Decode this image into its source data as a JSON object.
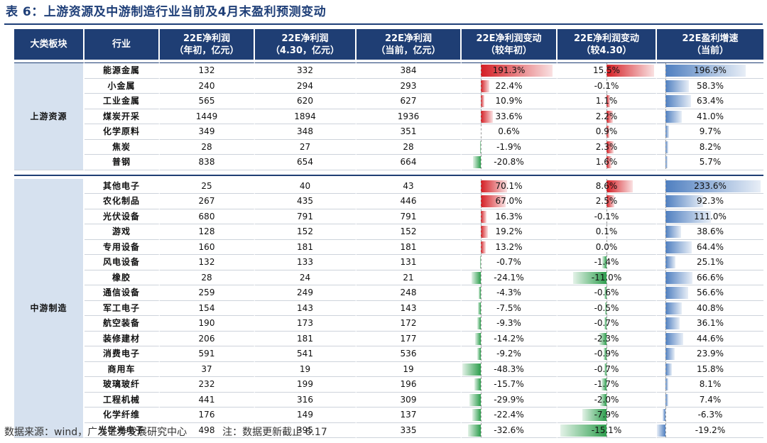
{
  "title": "表 6：上游资源及中游制造行业当前及4月末盈利预测变动",
  "headers": {
    "sector": "大类板块",
    "industry": "行业",
    "c1": [
      "22E净利润",
      "（年初，亿元）"
    ],
    "c2": [
      "22E净利润",
      "（4.30，亿元）"
    ],
    "c3": [
      "22E净利润",
      "（当前，亿元）"
    ],
    "c4": [
      "22E净利润变动",
      "（较年初）"
    ],
    "c5": [
      "22E净利润变动",
      "（较4.30）"
    ],
    "c6": [
      "22E盈利增速",
      "（当前）"
    ]
  },
  "colors": {
    "header_bg": "#1f3e74",
    "sector_bg": "#d6e1ef",
    "pos_bar": "#d41e24",
    "neg_bar": "#2e9e4e",
    "growth_bar": "#4f7fc0"
  },
  "groups": [
    {
      "sector": "上游资源",
      "rows": [
        {
          "name": "能源金属",
          "c1": "132",
          "c2": "332",
          "c3": "384",
          "c4": "191.3%",
          "c5": "15.5%",
          "c6": "196.9%",
          "v4": 191.3,
          "v5": 15.5,
          "v6": 196.9
        },
        {
          "name": "小金属",
          "c1": "240",
          "c2": "294",
          "c3": "293",
          "c4": "22.4%",
          "c5": "-0.1%",
          "c6": "58.3%",
          "v4": 22.4,
          "v5": -0.1,
          "v6": 58.3
        },
        {
          "name": "工业金属",
          "c1": "565",
          "c2": "620",
          "c3": "627",
          "c4": "10.9%",
          "c5": "1.1%",
          "c6": "63.4%",
          "v4": 10.9,
          "v5": 1.1,
          "v6": 63.4
        },
        {
          "name": "煤炭开采",
          "c1": "1449",
          "c2": "1894",
          "c3": "1936",
          "c4": "33.6%",
          "c5": "2.2%",
          "c6": "41.0%",
          "v4": 33.6,
          "v5": 2.2,
          "v6": 41.0
        },
        {
          "name": "化学原料",
          "c1": "349",
          "c2": "348",
          "c3": "351",
          "c4": "0.6%",
          "c5": "0.9%",
          "c6": "9.7%",
          "v4": 0.6,
          "v5": 0.9,
          "v6": 9.7
        },
        {
          "name": "焦炭",
          "c1": "28",
          "c2": "27",
          "c3": "28",
          "c4": "-1.9%",
          "c5": "2.3%",
          "c6": "8.2%",
          "v4": -1.9,
          "v5": 2.3,
          "v6": 8.2
        },
        {
          "name": "普钢",
          "c1": "838",
          "c2": "654",
          "c3": "664",
          "c4": "-20.8%",
          "c5": "1.6%",
          "c6": "5.7%",
          "v4": -20.8,
          "v5": 1.6,
          "v6": 5.7
        }
      ]
    },
    {
      "sector": "中游制造",
      "rows": [
        {
          "name": "其他电子",
          "c1": "25",
          "c2": "40",
          "c3": "43",
          "c4": "70.1%",
          "c5": "8.6%",
          "c6": "233.6%",
          "v4": 70.1,
          "v5": 8.6,
          "v6": 233.6
        },
        {
          "name": "农化制品",
          "c1": "267",
          "c2": "435",
          "c3": "446",
          "c4": "67.0%",
          "c5": "2.5%",
          "c6": "92.3%",
          "v4": 67.0,
          "v5": 2.5,
          "v6": 92.3
        },
        {
          "name": "光伏设备",
          "c1": "680",
          "c2": "791",
          "c3": "791",
          "c4": "16.3%",
          "c5": "-0.1%",
          "c6": "111.0%",
          "v4": 16.3,
          "v5": -0.1,
          "v6": 111.0
        },
        {
          "name": "游戏",
          "c1": "128",
          "c2": "152",
          "c3": "152",
          "c4": "19.2%",
          "c5": "0.1%",
          "c6": "38.6%",
          "v4": 19.2,
          "v5": 0.1,
          "v6": 38.6
        },
        {
          "name": "专用设备",
          "c1": "160",
          "c2": "181",
          "c3": "181",
          "c4": "13.2%",
          "c5": "0.0%",
          "c6": "64.4%",
          "v4": 13.2,
          "v5": 0.0,
          "v6": 64.4
        },
        {
          "name": "风电设备",
          "c1": "132",
          "c2": "133",
          "c3": "131",
          "c4": "-0.7%",
          "c5": "-1.4%",
          "c6": "25.1%",
          "v4": -0.7,
          "v5": -1.4,
          "v6": 25.1
        },
        {
          "name": "橡胶",
          "c1": "28",
          "c2": "24",
          "c3": "21",
          "c4": "-24.1%",
          "c5": "-11.0%",
          "c6": "66.6%",
          "v4": -24.1,
          "v5": -11.0,
          "v6": 66.6
        },
        {
          "name": "通信设备",
          "c1": "259",
          "c2": "249",
          "c3": "248",
          "c4": "-4.3%",
          "c5": "-0.6%",
          "c6": "56.6%",
          "v4": -4.3,
          "v5": -0.6,
          "v6": 56.6
        },
        {
          "name": "军工电子",
          "c1": "154",
          "c2": "143",
          "c3": "143",
          "c4": "-7.5%",
          "c5": "-0.5%",
          "c6": "40.8%",
          "v4": -7.5,
          "v5": -0.5,
          "v6": 40.8
        },
        {
          "name": "航空装备",
          "c1": "190",
          "c2": "173",
          "c3": "172",
          "c4": "-9.3%",
          "c5": "-0.7%",
          "c6": "36.1%",
          "v4": -9.3,
          "v5": -0.7,
          "v6": 36.1
        },
        {
          "name": "装修建材",
          "c1": "206",
          "c2": "181",
          "c3": "177",
          "c4": "-14.2%",
          "c5": "-2.3%",
          "c6": "44.6%",
          "v4": -14.2,
          "v5": -2.3,
          "v6": 44.6
        },
        {
          "name": "消费电子",
          "c1": "591",
          "c2": "541",
          "c3": "536",
          "c4": "-9.2%",
          "c5": "-0.9%",
          "c6": "23.9%",
          "v4": -9.2,
          "v5": -0.9,
          "v6": 23.9
        },
        {
          "name": "商用车",
          "c1": "37",
          "c2": "19",
          "c3": "19",
          "c4": "-48.3%",
          "c5": "-0.7%",
          "c6": "15.8%",
          "v4": -48.3,
          "v5": -0.7,
          "v6": 15.8
        },
        {
          "name": "玻璃玻纤",
          "c1": "232",
          "c2": "199",
          "c3": "196",
          "c4": "-15.7%",
          "c5": "-1.7%",
          "c6": "8.1%",
          "v4": -15.7,
          "v5": -1.7,
          "v6": 8.1
        },
        {
          "name": "工程机械",
          "c1": "441",
          "c2": "316",
          "c3": "309",
          "c4": "-29.9%",
          "c5": "-2.0%",
          "c6": "7.4%",
          "v4": -29.9,
          "v5": -2.0,
          "v6": 7.4
        },
        {
          "name": "化学纤维",
          "c1": "176",
          "c2": "149",
          "c3": "137",
          "c4": "-22.4%",
          "c5": "-7.9%",
          "c6": "-6.3%",
          "v4": -22.4,
          "v5": -7.9,
          "v6": -6.3
        },
        {
          "name": "光学光电子",
          "c1": "498",
          "c2": "395",
          "c3": "335",
          "c4": "-32.6%",
          "c5": "-15.1%",
          "c6": "-19.2%",
          "v4": -32.6,
          "v5": -15.1,
          "v6": -19.2
        }
      ]
    }
  ],
  "footer": {
    "source": "数据来源：wind，广发证券发展研究中心",
    "note": "注：数据更新截止 6.17"
  }
}
